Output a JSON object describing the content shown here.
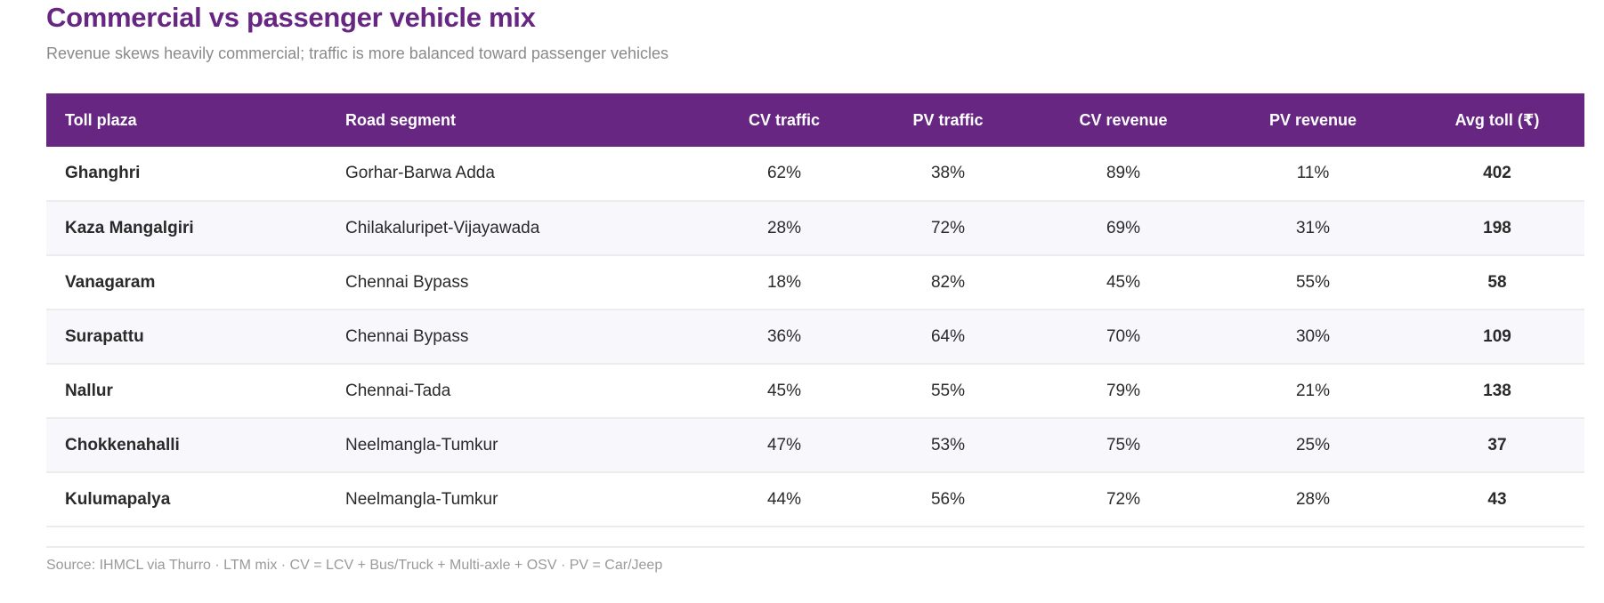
{
  "title": "Commercial vs passenger vehicle mix",
  "subtitle": "Revenue skews heavily commercial; traffic is more balanced toward passenger vehicles",
  "columns": [
    "Toll plaza",
    "Road segment",
    "CV traffic",
    "PV traffic",
    "CV revenue",
    "PV revenue",
    "Avg toll (₹)"
  ],
  "rows": [
    [
      "Ghanghri",
      "Gorhar-Barwa Adda",
      "62%",
      "38%",
      "89%",
      "11%",
      "402"
    ],
    [
      "Kaza Mangalgiri",
      "Chilakaluripet-Vijayawada",
      "28%",
      "72%",
      "69%",
      "31%",
      "198"
    ],
    [
      "Vanagaram",
      "Chennai Bypass",
      "18%",
      "82%",
      "45%",
      "55%",
      "58"
    ],
    [
      "Surapattu",
      "Chennai Bypass",
      "36%",
      "64%",
      "70%",
      "30%",
      "109"
    ],
    [
      "Nallur",
      "Chennai-Tada",
      "45%",
      "55%",
      "79%",
      "21%",
      "138"
    ],
    [
      "Chokkenahalli",
      "Neelmangla-Tumkur",
      "47%",
      "53%",
      "75%",
      "25%",
      "37"
    ],
    [
      "Kulumapalya",
      "Neelmangla-Tumkur",
      "44%",
      "56%",
      "72%",
      "28%",
      "43"
    ]
  ],
  "source": "Source: IHMCL via Thurro · LTM mix · CV = LCV + Bus/Truck + Multi-axle + OSV · PV = Car/Jeep",
  "colors": {
    "accent": "#662681",
    "alt_row": "#f8f7fc"
  }
}
